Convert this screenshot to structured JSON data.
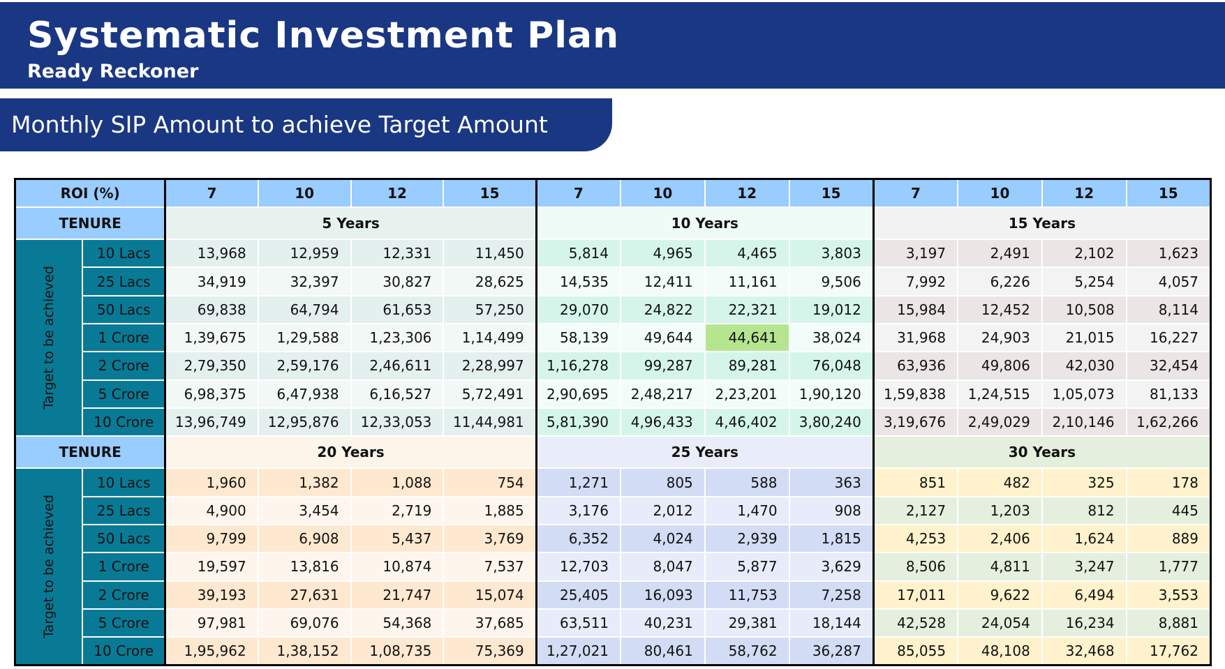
{
  "header": {
    "title": "Systematic Investment Plan",
    "subtitle": "Ready Reckoner"
  },
  "banner": "Monthly SIP Amount to achieve Target Amount",
  "table": {
    "roi_label": "ROI (%)",
    "roi_values": [
      "7",
      "10",
      "12",
      "15",
      "7",
      "10",
      "12",
      "15",
      "7",
      "10",
      "12",
      "15"
    ],
    "tenure_label": "TENURE",
    "target_label": "Target to be achieved",
    "targets": [
      "10 Lacs",
      "25 Lacs",
      "50 Lacs",
      "1 Crore",
      "2 Crore",
      "5 Crore",
      "10 Crore"
    ],
    "blocks": [
      {
        "periods": [
          "5 Years",
          "10 Years",
          "15 Years"
        ],
        "rows": [
          [
            "13,968",
            "12,959",
            "12,331",
            "11,450",
            "5,814",
            "4,965",
            "4,465",
            "3,803",
            "3,197",
            "2,491",
            "2,102",
            "1,623"
          ],
          [
            "34,919",
            "32,397",
            "30,827",
            "28,625",
            "14,535",
            "12,411",
            "11,161",
            "9,506",
            "7,992",
            "6,226",
            "5,254",
            "4,057"
          ],
          [
            "69,838",
            "64,794",
            "61,653",
            "57,250",
            "29,070",
            "24,822",
            "22,321",
            "19,012",
            "15,984",
            "12,452",
            "10,508",
            "8,114"
          ],
          [
            "1,39,675",
            "1,29,588",
            "1,23,306",
            "1,14,499",
            "58,139",
            "49,644",
            "44,641",
            "38,024",
            "31,968",
            "24,903",
            "21,015",
            "16,227"
          ],
          [
            "2,79,350",
            "2,59,176",
            "2,46,611",
            "2,28,997",
            "1,16,278",
            "99,287",
            "89,281",
            "76,048",
            "63,936",
            "49,806",
            "42,030",
            "32,454"
          ],
          [
            "6,98,375",
            "6,47,938",
            "6,16,527",
            "5,72,491",
            "2,90,695",
            "2,48,217",
            "2,23,201",
            "1,90,120",
            "1,59,838",
            "1,24,515",
            "1,05,073",
            "81,133"
          ],
          [
            "13,96,749",
            "12,95,876",
            "12,33,053",
            "11,44,981",
            "5,81,390",
            "4,96,433",
            "4,46,402",
            "3,80,240",
            "3,19,676",
            "2,49,029",
            "2,10,146",
            "1,62,266"
          ]
        ]
      },
      {
        "periods": [
          "20 Years",
          "25 Years",
          "30 Years"
        ],
        "rows": [
          [
            "1,960",
            "1,382",
            "1,088",
            "754",
            "1,271",
            "805",
            "588",
            "363",
            "851",
            "482",
            "325",
            "178"
          ],
          [
            "4,900",
            "3,454",
            "2,719",
            "1,885",
            "3,176",
            "2,012",
            "1,470",
            "908",
            "2,127",
            "1,203",
            "812",
            "445"
          ],
          [
            "9,799",
            "6,908",
            "5,437",
            "3,769",
            "6,352",
            "4,024",
            "2,939",
            "1,815",
            "4,253",
            "2,406",
            "1,624",
            "889"
          ],
          [
            "19,597",
            "13,816",
            "10,874",
            "7,537",
            "12,703",
            "8,047",
            "5,877",
            "3,629",
            "8,506",
            "4,811",
            "3,247",
            "1,777"
          ],
          [
            "39,193",
            "27,631",
            "21,747",
            "15,074",
            "25,405",
            "16,093",
            "11,753",
            "7,258",
            "17,011",
            "9,622",
            "6,494",
            "3,553"
          ],
          [
            "97,981",
            "69,076",
            "54,368",
            "37,685",
            "63,511",
            "40,231",
            "29,381",
            "18,144",
            "42,528",
            "24,054",
            "16,234",
            "8,881"
          ],
          [
            "1,95,962",
            "1,38,152",
            "1,08,735",
            "75,369",
            "1,27,021",
            "80,461",
            "58,762",
            "36,287",
            "85,055",
            "48,108",
            "32,468",
            "17,762"
          ]
        ]
      }
    ],
    "highlight": {
      "block": 0,
      "row": 3,
      "col": 6,
      "color": "#b5e68f"
    }
  },
  "colors": {
    "header_bg": "#1a3783",
    "roi_bg": "#99ccff",
    "target_bg": "#087a96",
    "group_header": [
      "#e7f2ef",
      "#effbf6",
      "#f2f2f2",
      "#fdf4ea",
      "#e9edf9",
      "#e5efdd"
    ],
    "group_alt": [
      [
        "#e4f0ee",
        "#f2f8f6"
      ],
      [
        "#d5f5ea",
        "#f2fcf8"
      ],
      [
        "#ebe5e5",
        "#f3f3f3"
      ],
      [
        "#ffe8d0",
        "#fef6ed"
      ],
      [
        "#d3dcf5",
        "#e7ebfa"
      ],
      [
        "#fff2cc",
        "#e5efdd"
      ]
    ]
  }
}
